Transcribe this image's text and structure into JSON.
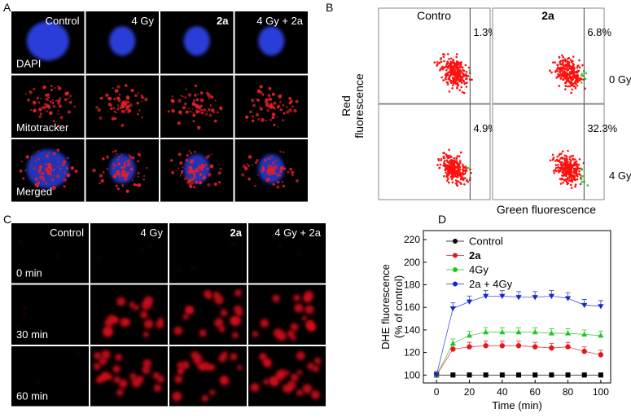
{
  "panels": {
    "A": {
      "label": "A",
      "columns": [
        "Control",
        "4 Gy",
        "2a",
        "4 Gy + 2a"
      ],
      "rows": [
        "DAPI",
        "Mitotracker",
        "Merged"
      ]
    },
    "B": {
      "label": "B",
      "columns": [
        "Contro",
        "2a"
      ],
      "rows": [
        "0 Gy",
        "4 Gy"
      ],
      "percentages": [
        [
          "1.3%",
          "6.8%"
        ],
        [
          "4.9%",
          "32.3%"
        ]
      ],
      "ylabel": [
        "Red",
        "fluorescence"
      ],
      "xlabel": "Green fluorescence"
    },
    "C": {
      "label": "C",
      "columns": [
        "Control",
        "4 Gy",
        "2a",
        "4 Gy + 2a"
      ],
      "rows": [
        "0 min",
        "30 min",
        "60 min"
      ]
    },
    "D": {
      "label": "D"
    }
  },
  "chart_data": {
    "type": "line",
    "x": [
      0,
      10,
      20,
      30,
      40,
      50,
      60,
      70,
      80,
      90,
      100
    ],
    "xlabel": "Time (min)",
    "ylabel": [
      "DHE fluorescence",
      "(% of control)"
    ],
    "xlim": [
      -8,
      106
    ],
    "xticks": [
      0,
      20,
      40,
      60,
      80,
      100
    ],
    "ylim": [
      93,
      228
    ],
    "yticks": [
      100,
      120,
      140,
      160,
      180,
      200,
      220
    ],
    "series": [
      {
        "name": "Control",
        "color": "#000000",
        "marker": "square",
        "values": [
          100,
          100,
          100,
          100,
          100,
          100,
          100,
          100,
          100,
          100,
          100
        ],
        "errors": [
          2,
          2,
          2,
          2,
          2,
          2,
          2,
          2,
          2,
          2,
          2
        ]
      },
      {
        "name": "2a",
        "color": "#e8141c",
        "marker": "circle",
        "values": [
          100,
          123,
          125,
          126,
          126,
          126,
          125,
          124,
          125,
          121,
          118
        ],
        "errors": [
          3,
          4,
          4,
          4,
          4,
          4,
          4,
          4,
          4,
          4,
          4
        ]
      },
      {
        "name": "4Gy",
        "color": "#1ec81e",
        "marker": "triangle-up",
        "values": [
          100,
          128,
          135,
          138,
          138,
          138,
          138,
          137,
          137,
          136,
          135
        ],
        "errors": [
          3,
          4,
          4,
          4,
          4,
          4,
          4,
          4,
          4,
          4,
          4
        ]
      },
      {
        "name": "2a + 4Gy",
        "color": "#1428c8",
        "marker": "triangle-down",
        "values": [
          100,
          159,
          165,
          170,
          170,
          169,
          169,
          170,
          168,
          162,
          161
        ],
        "errors": [
          3,
          5,
          5,
          5,
          5,
          5,
          5,
          5,
          5,
          5,
          5
        ]
      }
    ]
  }
}
